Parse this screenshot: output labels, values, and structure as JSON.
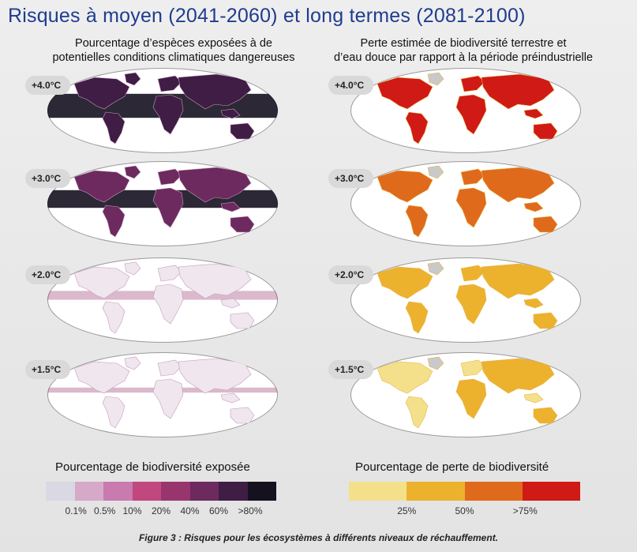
{
  "title": "Risques à moyen (2041-2060) et long termes (2081-2100)",
  "left_panel": {
    "title_line1": "Pourcentage d’espèces exposées à de",
    "title_line2": "potentielles conditions climatiques dangereuses",
    "legend_title": "Pourcentage de biodiversité exposée",
    "legend_ticks": [
      "0.1%",
      "0.5%",
      "10%",
      "20%",
      "40%",
      "60%",
      ">80%"
    ],
    "legend_colors": [
      "#d9d8e3",
      "#d6a9c9",
      "#c97aae",
      "#c0487f",
      "#99356d",
      "#6c2a5f",
      "#3f1d45",
      "#15111f"
    ]
  },
  "right_panel": {
    "title_line1": "Perte estimée de biodiversité terrestre et",
    "title_line2": "d’eau douce par rapport à la période préindustrielle",
    "legend_title": "Pourcentage de perte de biodiversité",
    "legend_ticks": [
      "25%",
      "50%",
      ">75%"
    ],
    "legend_colors": [
      "#f4e08a",
      "#ecb22e",
      "#e06a1c",
      "#d01a16"
    ]
  },
  "scenarios": [
    "+4.0°C",
    "+3.0°C",
    "+2.0°C",
    "+1.5°C"
  ],
  "caption": "Figure 3 : Risques pour les écosystèmes à différents niveaux de réchauffement."
}
